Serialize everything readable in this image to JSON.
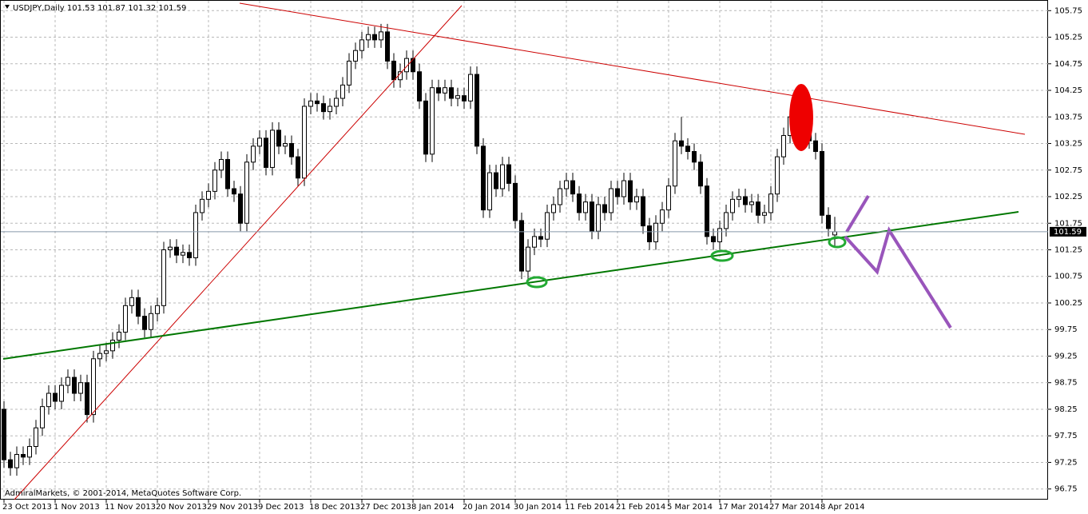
{
  "chart_data": {
    "type": "candlestick",
    "title": "USDJPY,Daily  101.53 101.87 101.32 101.59",
    "copyright": "AdmiralMarkets, © 2001-2014, MetaQuotes Software Corp.",
    "current_price": 101.59,
    "grid": true,
    "up_color": "#ffffff",
    "down_color": "#000000",
    "ylim": [
      96.55,
      105.95
    ],
    "yticks": [
      96.75,
      97.25,
      97.75,
      98.25,
      98.75,
      99.25,
      99.75,
      100.25,
      100.75,
      101.25,
      101.75,
      102.25,
      102.75,
      103.25,
      103.75,
      104.25,
      104.75,
      105.25,
      105.75
    ],
    "categories": [
      "23 Oct 2013",
      null,
      null,
      null,
      null,
      null,
      null,
      null,
      "1 Nov 2013",
      null,
      null,
      null,
      null,
      null,
      null,
      null,
      "11 Nov 2013",
      null,
      null,
      null,
      null,
      null,
      null,
      null,
      "20 Nov 2013",
      null,
      null,
      null,
      null,
      null,
      null,
      null,
      "29 Nov 2013",
      null,
      null,
      null,
      null,
      null,
      null,
      null,
      "9 Dec 2013",
      null,
      null,
      null,
      null,
      null,
      null,
      null,
      "18 Dec 2013",
      null,
      null,
      null,
      null,
      null,
      null,
      null,
      "27 Dec 2013",
      null,
      null,
      null,
      null,
      null,
      null,
      null,
      "8 Jan 2014",
      null,
      null,
      null,
      null,
      null,
      null,
      null,
      "20 Jan 2014",
      null,
      null,
      null,
      null,
      null,
      null,
      null,
      "30 Jan 2014",
      null,
      null,
      null,
      null,
      null,
      null,
      null,
      "11 Feb 2014",
      null,
      null,
      null,
      null,
      null,
      null,
      null,
      "21 Feb 2014",
      null,
      null,
      null,
      null,
      null,
      null,
      null,
      "5 Mar 2014",
      null,
      null,
      null,
      null,
      null,
      null,
      null,
      "17 Mar 2014",
      null,
      null,
      null,
      null,
      null,
      null,
      null,
      "27 Mar 2014",
      null,
      null,
      null,
      null,
      null,
      null,
      null,
      "8 Apr 2014",
      null,
      null
    ],
    "open": [
      98.25,
      97.3,
      97.15,
      97.4,
      97.35,
      97.55,
      97.9,
      98.3,
      98.55,
      98.4,
      98.7,
      98.85,
      98.55,
      98.75,
      98.15,
      99.2,
      99.3,
      99.35,
      99.55,
      99.7,
      100.2,
      100.35,
      100.0,
      99.75,
      100.05,
      100.2,
      101.25,
      101.3,
      101.15,
      101.2,
      101.1,
      101.95,
      102.2,
      102.35,
      102.75,
      102.95,
      102.4,
      102.3,
      101.75,
      102.9,
      103.2,
      103.35,
      102.8,
      103.5,
      103.2,
      103.25,
      103.0,
      102.6,
      103.95,
      104.05,
      104.0,
      103.85,
      103.95,
      104.1,
      104.35,
      104.8,
      105.0,
      105.2,
      105.3,
      105.2,
      105.35,
      104.8,
      104.45,
      104.6,
      104.85,
      104.6,
      104.05,
      103.05,
      104.3,
      104.2,
      104.3,
      104.1,
      104.15,
      104.05,
      104.55,
      103.2,
      102.0,
      102.7,
      102.4,
      102.85,
      102.5,
      101.8,
      100.85,
      101.3,
      101.5,
      101.45,
      101.95,
      102.1,
      102.4,
      102.55,
      102.3,
      101.95,
      102.15,
      101.6,
      102.1,
      101.95,
      102.4,
      102.25,
      102.55,
      102.15,
      102.25,
      101.7,
      101.4,
      101.75,
      102.0,
      102.45,
      103.3,
      103.2,
      103.1,
      102.9,
      102.45,
      101.5,
      101.4,
      101.65,
      101.95,
      102.2,
      102.25,
      102.1,
      102.15,
      101.9,
      101.95,
      102.3,
      103.0,
      103.4,
      103.75,
      103.8,
      103.9,
      103.3,
      103.1,
      101.9,
      101.53
    ],
    "high": [
      98.4,
      97.45,
      97.55,
      97.55,
      97.7,
      98.05,
      98.45,
      98.7,
      98.7,
      98.85,
      99.0,
      99.0,
      98.9,
      98.9,
      99.35,
      99.45,
      99.5,
      99.7,
      99.85,
      100.35,
      100.5,
      100.5,
      100.15,
      100.2,
      100.35,
      101.4,
      101.45,
      101.45,
      101.35,
      101.35,
      102.1,
      102.35,
      102.5,
      102.9,
      103.1,
      103.1,
      102.55,
      102.45,
      103.05,
      103.35,
      103.5,
      103.5,
      103.65,
      103.65,
      103.4,
      103.4,
      103.15,
      104.1,
      104.2,
      104.2,
      104.15,
      104.1,
      104.25,
      104.5,
      104.95,
      105.15,
      105.35,
      105.45,
      105.45,
      105.5,
      105.5,
      104.95,
      104.75,
      105.0,
      105.0,
      104.75,
      104.2,
      104.45,
      104.45,
      104.45,
      104.45,
      104.3,
      104.3,
      104.7,
      104.7,
      103.35,
      102.85,
      102.85,
      103.0,
      103.0,
      102.65,
      101.95,
      101.45,
      101.65,
      101.65,
      102.1,
      102.25,
      102.55,
      102.7,
      102.7,
      102.45,
      102.3,
      102.3,
      102.25,
      102.25,
      102.55,
      102.55,
      102.7,
      102.7,
      102.4,
      102.4,
      101.85,
      101.9,
      102.15,
      102.6,
      103.45,
      103.75,
      103.35,
      103.25,
      103.05,
      102.6,
      101.65,
      101.8,
      102.1,
      102.35,
      102.4,
      102.4,
      102.3,
      102.3,
      102.1,
      102.45,
      103.15,
      103.55,
      103.9,
      103.95,
      104.05,
      104.05,
      103.45,
      103.25,
      102.05,
      101.87
    ],
    "low": [
      97.15,
      97.0,
      97.0,
      97.2,
      97.2,
      97.4,
      97.75,
      98.15,
      98.25,
      98.25,
      98.55,
      98.4,
      98.4,
      98.0,
      98.0,
      99.05,
      99.15,
      99.2,
      99.4,
      99.55,
      100.05,
      99.85,
      99.6,
      99.6,
      99.9,
      100.05,
      101.1,
      101.0,
      101.0,
      100.95,
      100.95,
      101.8,
      102.05,
      102.2,
      102.6,
      102.25,
      102.15,
      101.6,
      101.6,
      102.75,
      103.05,
      102.65,
      102.65,
      103.05,
      103.05,
      102.85,
      102.45,
      102.45,
      103.8,
      103.85,
      103.7,
      103.7,
      103.8,
      103.95,
      104.2,
      104.65,
      104.85,
      105.05,
      105.05,
      105.05,
      104.65,
      104.3,
      104.3,
      104.45,
      104.45,
      103.9,
      102.9,
      102.9,
      104.05,
      104.05,
      103.95,
      103.95,
      103.9,
      103.9,
      103.05,
      101.85,
      101.85,
      102.25,
      102.25,
      102.35,
      101.65,
      100.7,
      100.7,
      101.15,
      101.3,
      101.3,
      101.8,
      101.95,
      102.25,
      102.15,
      101.8,
      101.8,
      101.45,
      101.45,
      101.8,
      101.8,
      102.1,
      102.1,
      102.0,
      102.0,
      101.55,
      101.25,
      101.25,
      101.6,
      101.85,
      102.3,
      103.05,
      102.95,
      102.75,
      102.3,
      101.35,
      101.25,
      101.25,
      101.5,
      101.8,
      102.05,
      101.95,
      101.95,
      101.75,
      101.75,
      101.8,
      102.15,
      102.85,
      103.25,
      103.6,
      103.65,
      103.15,
      102.95,
      101.75,
      101.5,
      101.32
    ],
    "close": [
      97.3,
      97.15,
      97.4,
      97.35,
      97.55,
      97.9,
      98.3,
      98.55,
      98.4,
      98.7,
      98.85,
      98.55,
      98.75,
      98.15,
      99.2,
      99.3,
      99.35,
      99.55,
      99.7,
      100.2,
      100.35,
      100.0,
      99.75,
      100.05,
      100.2,
      101.25,
      101.3,
      101.15,
      101.2,
      101.1,
      101.95,
      102.2,
      102.35,
      102.75,
      102.95,
      102.4,
      102.3,
      101.75,
      102.9,
      103.2,
      103.35,
      102.8,
      103.5,
      103.2,
      103.25,
      103.0,
      102.6,
      103.95,
      104.05,
      104.0,
      103.85,
      103.95,
      104.1,
      104.35,
      104.8,
      105.0,
      105.2,
      105.3,
      105.2,
      105.35,
      104.8,
      104.45,
      104.6,
      104.85,
      104.6,
      104.05,
      103.05,
      104.3,
      104.2,
      104.3,
      104.1,
      104.15,
      104.05,
      104.55,
      103.2,
      102.0,
      102.7,
      102.4,
      102.85,
      102.5,
      101.8,
      100.85,
      101.3,
      101.5,
      101.45,
      101.95,
      102.1,
      102.4,
      102.55,
      102.3,
      101.95,
      102.15,
      101.6,
      102.1,
      101.95,
      102.4,
      102.25,
      102.55,
      102.15,
      102.25,
      101.7,
      101.4,
      101.75,
      102.0,
      102.45,
      103.3,
      103.2,
      103.1,
      102.9,
      102.45,
      101.5,
      101.4,
      101.65,
      101.95,
      102.2,
      102.25,
      102.1,
      102.15,
      101.9,
      101.95,
      102.3,
      103.0,
      103.4,
      103.75,
      103.8,
      103.9,
      103.3,
      103.1,
      101.9,
      101.65,
      101.59
    ]
  }
}
